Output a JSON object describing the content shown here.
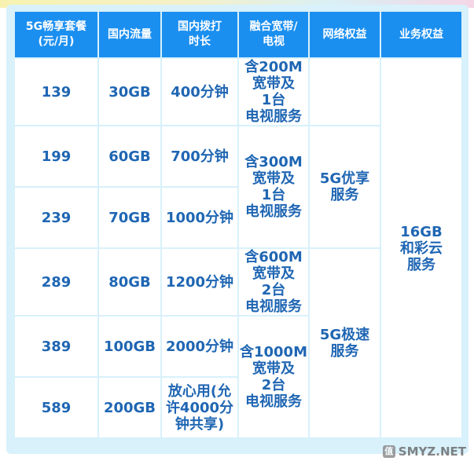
{
  "headers": {
    "plan": "5G畅享套餐\n(元/月)",
    "data": "国内流量",
    "minutes": "国内拨打\n时长",
    "broadband": "融合宽带/\n电视",
    "network": "网络权益",
    "business": "业务权益"
  },
  "rows": [
    {
      "price": "139",
      "data": "30GB",
      "minutes": "400分钟"
    },
    {
      "price": "199",
      "data": "60GB",
      "minutes": "700分钟"
    },
    {
      "price": "239",
      "data": "70GB",
      "minutes": "1000分钟"
    },
    {
      "price": "289",
      "data": "80GB",
      "minutes": "1200分钟"
    },
    {
      "price": "389",
      "data": "100GB",
      "minutes": "2000分钟"
    },
    {
      "price": "589",
      "data": "200GB",
      "minutes": "放心用(允\n许4000分\n钟共享)"
    }
  ],
  "broadband_groups": [
    "含200M\n宽带及\n1台\n电视服务",
    "含300M\n宽带及\n1台\n电视服务",
    "含600M\n宽带及\n2台\n电视服务",
    "含1000M\n宽带及\n2台\n电视服务"
  ],
  "network_groups": [
    "",
    "5G优享\n服务",
    "5G极速\n服务"
  ],
  "business_benefit": "16GB\n和彩云\n服务",
  "watermark": "SMYZ.NET",
  "watermark_badge": "值",
  "colors": {
    "header_bg": "#1b8ff0",
    "price_text": "#d6135f",
    "cell_text": "#1f66b3",
    "panel_bg": "#d8f1fb"
  }
}
